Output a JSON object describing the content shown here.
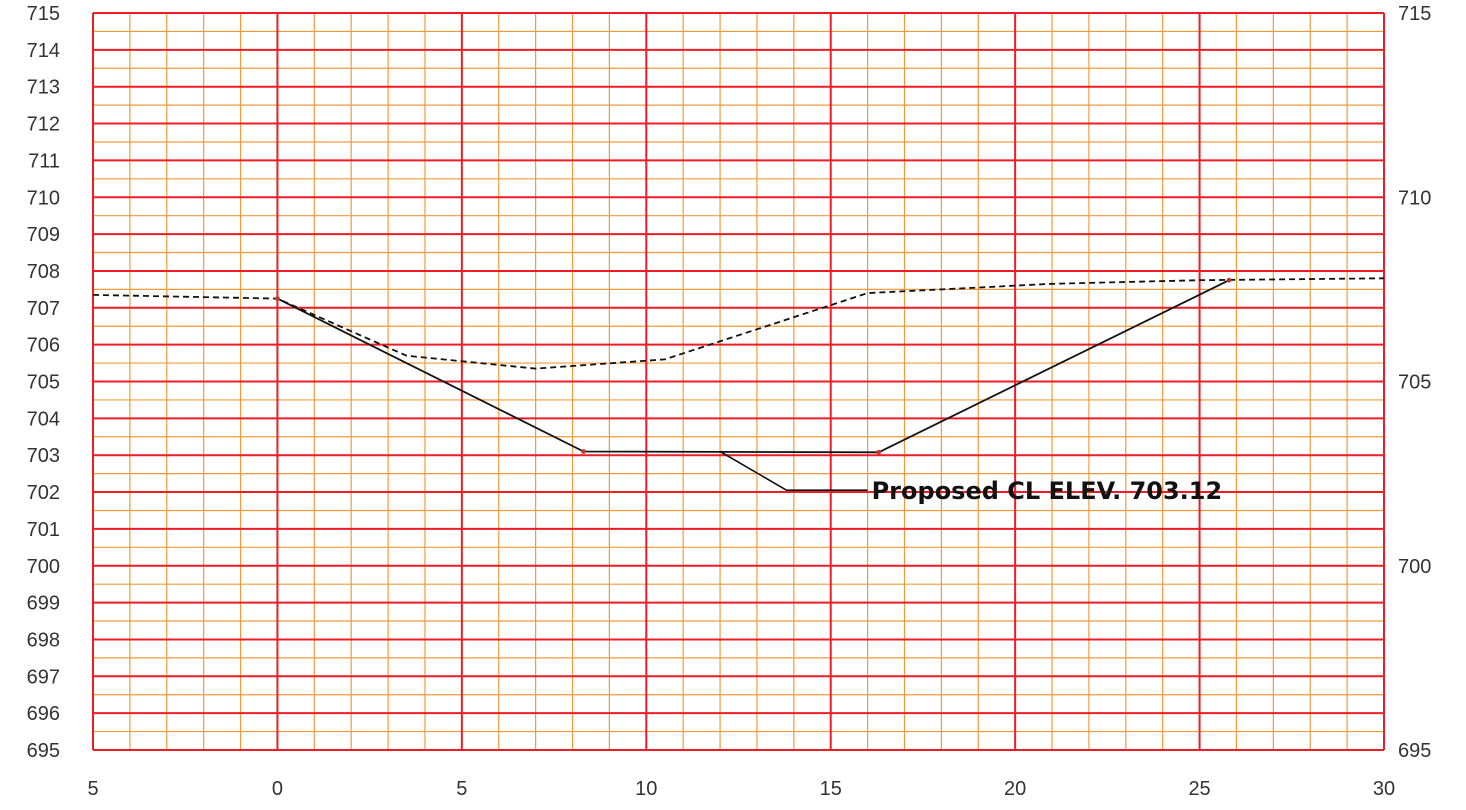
{
  "chart_data": {
    "type": "line",
    "title": "",
    "xlabel": "",
    "ylabel": "",
    "grid": true,
    "xlim": [
      -5,
      30
    ],
    "ylim": [
      695,
      715
    ],
    "x_tick_labels": [
      "5",
      "0",
      "5",
      "10",
      "15",
      "20",
      "25",
      "30"
    ],
    "x_tick_values": [
      -5,
      0,
      5,
      10,
      15,
      20,
      25,
      30
    ],
    "y_left_ticks": [
      "715",
      "714",
      "713",
      "712",
      "711",
      "710",
      "709",
      "708",
      "707",
      "706",
      "705",
      "704",
      "703",
      "702",
      "701",
      "700",
      "699",
      "698",
      "697",
      "696",
      "695"
    ],
    "y_right_ticks": [
      "715",
      "710",
      "705",
      "700",
      "695"
    ],
    "series": [
      {
        "style": "dashed",
        "color": "#111111",
        "points": [
          [
            -5,
            707.35
          ],
          [
            0,
            707.25
          ],
          [
            3.5,
            705.7
          ],
          [
            7,
            705.35
          ],
          [
            10.5,
            705.6
          ],
          [
            16,
            707.4
          ],
          [
            21,
            707.65
          ],
          [
            25,
            707.75
          ],
          [
            30,
            707.8
          ]
        ]
      },
      {
        "style": "solid",
        "color": "#111111",
        "points": [
          [
            0,
            707.25
          ],
          [
            8.3,
            703.1
          ],
          [
            16.3,
            703.08
          ],
          [
            25.8,
            707.75
          ]
        ]
      }
    ],
    "annotations": [
      {
        "text": "Proposed CL ELEV. 703.12",
        "leader": [
          [
            12,
            703.1
          ],
          [
            13.8,
            702.05
          ],
          [
            16,
            702.05
          ]
        ]
      }
    ],
    "colors": {
      "major_grid": "#ee1c24",
      "minor_grid": "#f29a3a",
      "line": "#111111"
    }
  }
}
